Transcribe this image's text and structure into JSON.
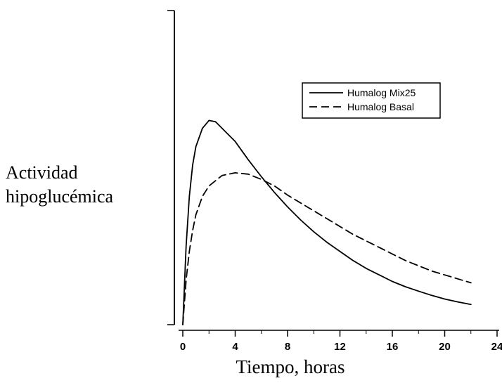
{
  "chart_data": {
    "type": "line",
    "title": "",
    "ylabel_lines": [
      "Actividad",
      "hipoglucémica"
    ],
    "xlabel": "Tiempo, horas",
    "xlim": [
      0,
      24
    ],
    "x_ticks": [
      0,
      4,
      8,
      12,
      16,
      20,
      24
    ],
    "ylim": [
      0,
      1.2
    ],
    "y_ticks_labeled": false,
    "grid": false,
    "legend_position": "top-right",
    "series": [
      {
        "name": "Humalog Mix25",
        "style": "solid",
        "color": "#000000",
        "x": [
          0,
          0.25,
          0.5,
          0.75,
          1,
          1.5,
          2,
          2.5,
          3,
          4,
          5,
          6,
          7,
          8,
          9,
          10,
          11,
          12,
          13,
          14,
          15,
          16,
          17,
          18,
          19,
          20,
          21,
          22
        ],
        "y": [
          0.0,
          0.3,
          0.49,
          0.61,
          0.68,
          0.75,
          0.78,
          0.775,
          0.75,
          0.7,
          0.63,
          0.565,
          0.505,
          0.45,
          0.4,
          0.355,
          0.315,
          0.28,
          0.245,
          0.215,
          0.19,
          0.165,
          0.145,
          0.128,
          0.112,
          0.098,
          0.087,
          0.077
        ]
      },
      {
        "name": "Humalog Basal",
        "style": "dashed",
        "color": "#000000",
        "x": [
          0,
          0.25,
          0.5,
          0.75,
          1,
          1.5,
          2,
          3,
          4,
          5,
          6,
          7,
          8,
          9,
          10,
          11,
          12,
          13,
          14,
          15,
          16,
          17,
          18,
          19,
          20,
          21,
          22
        ],
        "y": [
          0.0,
          0.17,
          0.28,
          0.36,
          0.42,
          0.49,
          0.53,
          0.57,
          0.58,
          0.575,
          0.555,
          0.53,
          0.495,
          0.465,
          0.435,
          0.405,
          0.375,
          0.345,
          0.32,
          0.295,
          0.27,
          0.245,
          0.225,
          0.205,
          0.19,
          0.175,
          0.16
        ]
      }
    ]
  }
}
